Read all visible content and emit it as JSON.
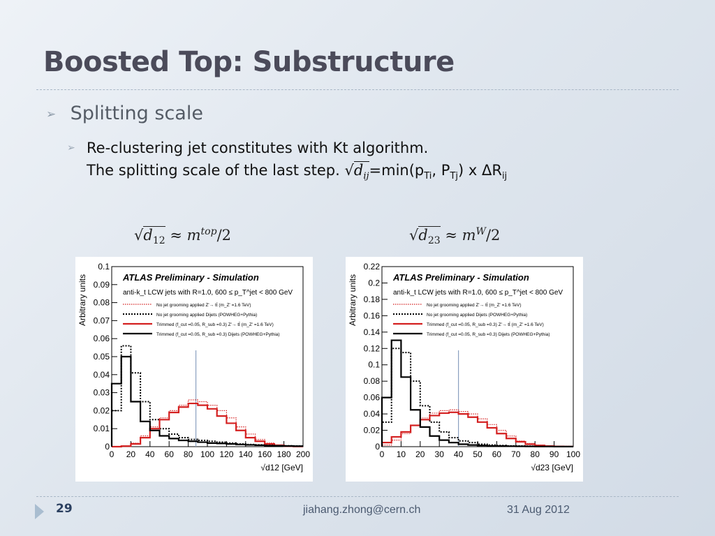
{
  "slide": {
    "title": "Boosted Top: Substructure",
    "bullet1": "Splitting scale",
    "bullet2_line1": "Re-clustering jet constitutes with Kt algorithm.",
    "bullet2_line2_prefix": "The splitting scale of the last step.",
    "formula_dij": "d",
    "formula_dij_sub": "ij",
    "formula_rhs_1": "=min(p",
    "formula_rhs_sub1": "Ti",
    "formula_rhs_2": ", P",
    "formula_rhs_sub2": "Tj",
    "formula_rhs_3": ") x ΔR",
    "formula_rhs_sub3": "ij",
    "left_formula": {
      "d": "d",
      "sub": "12",
      "approx": "≈ m",
      "sup": "top",
      "tail": "/2"
    },
    "right_formula": {
      "d": "d",
      "sub": "23",
      "approx": "≈ m",
      "sup": "W",
      "tail": "/2"
    },
    "footer": {
      "page": "29",
      "email": "jiahang.zhong@cern.ch",
      "date": "31 Aug 2012"
    },
    "colors": {
      "signal": "#d42020",
      "background": "#000000",
      "title": "#4b4b5a"
    }
  },
  "chart_data": [
    {
      "type": "line",
      "title": "ATLAS Preliminary - Simulation",
      "subtitle": "anti-k_t LCW jets with R=1.0, 600 ≤ p_T^jet < 800 GeV",
      "xlabel": "√d12 [GeV]",
      "ylabel": "Arbitrary units",
      "xlim": [
        0,
        200
      ],
      "ylim": [
        0,
        0.1
      ],
      "xticks": [
        "0",
        "20",
        "40",
        "60",
        "80",
        "100",
        "120",
        "140",
        "160",
        "180",
        "200"
      ],
      "yticks": [
        "0",
        "0.01",
        "0.02",
        "0.03",
        "0.04",
        "0.05",
        "0.06",
        "0.07",
        "0.08",
        "0.09",
        "0.1"
      ],
      "marker_line_x": 88,
      "legend": [
        "No jet grooming applied Z'→ tt̄ (m_Z' =1.6 TeV)",
        "No jet grooming applied Dijets (POWHEG+Pythia)",
        "Trimmed (f_cut =0.05, R_sub =0.3) Z'→ tt̄ (m_Z' =1.6 TeV)",
        "Trimmed (f_cut =0.05, R_sub =0.3) Dijets (POWHEG+Pythia)"
      ],
      "series": [
        {
          "name": "No jet grooming applied Z'→ tt̄ (m_Z' =1.6 TeV)",
          "style": "red-dotted",
          "x": [
            5,
            15,
            25,
            35,
            45,
            55,
            65,
            75,
            85,
            95,
            105,
            115,
            125,
            135,
            145,
            155,
            165,
            175,
            185,
            195
          ],
          "values": [
            0.0,
            0.0005,
            0.002,
            0.006,
            0.011,
            0.016,
            0.02,
            0.023,
            0.026,
            0.025,
            0.023,
            0.02,
            0.016,
            0.011,
            0.007,
            0.004,
            0.002,
            0.001,
            0.0005,
            0.0002
          ]
        },
        {
          "name": "No jet grooming applied Dijets (POWHEG+Pythia)",
          "style": "black-dotted",
          "x": [
            5,
            15,
            25,
            35,
            45,
            55,
            65,
            75,
            85,
            95,
            105,
            115,
            125,
            135,
            145,
            155,
            165,
            175,
            185,
            195
          ],
          "values": [
            0.02,
            0.056,
            0.041,
            0.025,
            0.015,
            0.01,
            0.007,
            0.005,
            0.004,
            0.0035,
            0.003,
            0.0025,
            0.002,
            0.0015,
            0.0012,
            0.001,
            0.0008,
            0.0006,
            0.0005,
            0.0004
          ]
        },
        {
          "name": "Trimmed (f_cut =0.05, R_sub =0.3) Z'→ tt̄ (m_Z' =1.6 TeV)",
          "style": "red-solid",
          "x": [
            5,
            15,
            25,
            35,
            45,
            55,
            65,
            75,
            85,
            95,
            105,
            115,
            125,
            135,
            145,
            155,
            165,
            175,
            185,
            195
          ],
          "values": [
            0.0,
            0.0003,
            0.0015,
            0.005,
            0.01,
            0.015,
            0.019,
            0.022,
            0.024,
            0.023,
            0.021,
            0.017,
            0.013,
            0.009,
            0.005,
            0.003,
            0.0015,
            0.0008,
            0.0003,
            0.0001
          ]
        },
        {
          "name": "Trimmed (f_cut =0.05, R_sub =0.3) Dijets (POWHEG+Pythia)",
          "style": "black-solid",
          "x": [
            5,
            15,
            25,
            35,
            45,
            55,
            65,
            75,
            85,
            95,
            105,
            115,
            125,
            135,
            145,
            155,
            165,
            175,
            185,
            195
          ],
          "values": [
            0.035,
            0.05,
            0.025,
            0.014,
            0.009,
            0.006,
            0.0045,
            0.0035,
            0.003,
            0.0025,
            0.002,
            0.0018,
            0.0015,
            0.0012,
            0.001,
            0.0008,
            0.0006,
            0.0005,
            0.0004,
            0.0003
          ]
        }
      ]
    },
    {
      "type": "line",
      "title": "ATLAS Preliminary - Simulation",
      "subtitle": "anti-k_t LCW jets with R=1.0, 600 ≤ p_T^jet < 800 GeV",
      "xlabel": "√d23 [GeV]",
      "ylabel": "Arbitrary units",
      "xlim": [
        0,
        100
      ],
      "ylim": [
        0,
        0.22
      ],
      "xticks": [
        "0",
        "10",
        "20",
        "30",
        "40",
        "50",
        "60",
        "70",
        "80",
        "90",
        "100"
      ],
      "yticks": [
        "0",
        "0.02",
        "0.04",
        "0.06",
        "0.08",
        "0.1",
        "0.12",
        "0.14",
        "0.16",
        "0.18",
        "0.2",
        "0.22"
      ],
      "marker_line_x": 40,
      "legend": [
        "No jet grooming applied Z'→ tt̄ (m_Z' =1.6 TeV)",
        "No jet grooming applied Dijets (POWHEG+Pythia)",
        "Trimmed (f_cut =0.05, R_sub =0.3) Z'→ tt̄ (m_Z' =1.6 TeV)",
        "Trimmed (f_cut =0.05, R_sub =0.3) Dijets (POWHEG+Pythia)"
      ],
      "series": [
        {
          "name": "No jet grooming applied Z'→ tt̄ (m_Z' =1.6 TeV)",
          "style": "red-dotted",
          "x": [
            2.5,
            7.5,
            12.5,
            17.5,
            22.5,
            27.5,
            32.5,
            37.5,
            42.5,
            47.5,
            52.5,
            57.5,
            62.5,
            67.5,
            72.5,
            77.5,
            82.5,
            87.5,
            92.5,
            97.5
          ],
          "values": [
            0.002,
            0.008,
            0.016,
            0.026,
            0.035,
            0.041,
            0.044,
            0.045,
            0.043,
            0.04,
            0.034,
            0.027,
            0.02,
            0.013,
            0.007,
            0.004,
            0.002,
            0.001,
            0.0005,
            0.0002
          ]
        },
        {
          "name": "No jet grooming applied Dijets (POWHEG+Pythia)",
          "style": "black-dotted",
          "x": [
            2.5,
            7.5,
            12.5,
            17.5,
            22.5,
            27.5,
            32.5,
            37.5,
            42.5,
            47.5,
            52.5,
            57.5,
            62.5,
            67.5,
            72.5,
            77.5,
            82.5,
            87.5,
            92.5,
            97.5
          ],
          "values": [
            0.03,
            0.12,
            0.115,
            0.08,
            0.05,
            0.03,
            0.018,
            0.011,
            0.007,
            0.005,
            0.003,
            0.002,
            0.0015,
            0.001,
            0.0008,
            0.0006,
            0.0004,
            0.0003,
            0.0002,
            0.0001
          ]
        },
        {
          "name": "Trimmed (f_cut =0.05, R_sub =0.3) Z'→ tt̄ (m_Z' =1.6 TeV)",
          "style": "red-solid",
          "x": [
            2.5,
            7.5,
            12.5,
            17.5,
            22.5,
            27.5,
            32.5,
            37.5,
            42.5,
            47.5,
            52.5,
            57.5,
            62.5,
            67.5,
            72.5,
            77.5,
            82.5,
            87.5,
            92.5,
            97.5
          ],
          "values": [
            0.005,
            0.012,
            0.018,
            0.026,
            0.033,
            0.038,
            0.041,
            0.042,
            0.04,
            0.036,
            0.03,
            0.023,
            0.016,
            0.01,
            0.006,
            0.003,
            0.0015,
            0.0008,
            0.0003,
            0.0001
          ]
        },
        {
          "name": "Trimmed (f_cut =0.05, R_sub =0.3) Dijets (POWHEG+Pythia)",
          "style": "black-solid",
          "x": [
            2.5,
            7.5,
            12.5,
            17.5,
            22.5,
            27.5,
            32.5,
            37.5,
            42.5,
            47.5,
            52.5,
            57.5,
            62.5,
            67.5,
            72.5,
            77.5,
            82.5,
            87.5,
            92.5,
            97.5
          ],
          "values": [
            0.06,
            0.13,
            0.085,
            0.045,
            0.024,
            0.013,
            0.008,
            0.005,
            0.003,
            0.002,
            0.0015,
            0.001,
            0.0008,
            0.0006,
            0.0004,
            0.0003,
            0.0002,
            0.0002,
            0.0001,
            0.0001
          ]
        }
      ]
    }
  ]
}
